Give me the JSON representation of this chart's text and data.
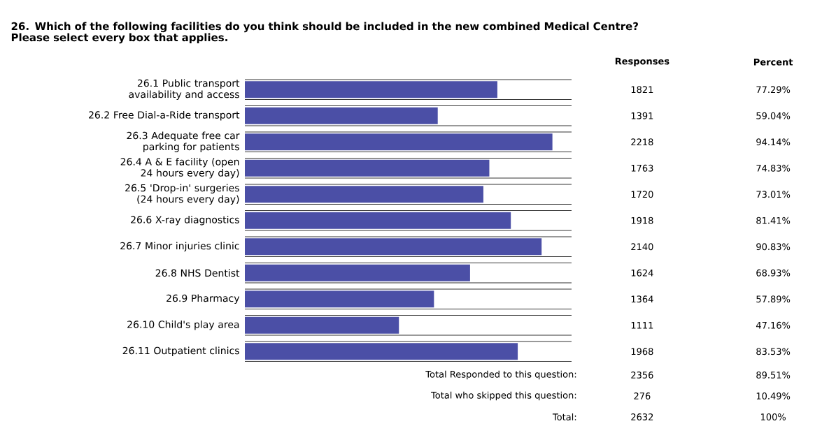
{
  "chart_data": {
    "type": "bar",
    "orientation": "horizontal",
    "title": "26. Which of the following facilities do you think should be included in the new combined Medical Centre? Please select every box that applies.",
    "categories": [
      "26.1 Public transport availability and access",
      "26.2 Free Dial-a-Ride transport",
      "26.3 Adequate free car parking for patients",
      "26.4 A & E facility (open 24 hours every day)",
      "26.5 'Drop-in' surgeries (24 hours every day)",
      "26.6 X-ray diagnostics",
      "26.7 Minor injuries clinic",
      "26.8 NHS Dentist",
      "26.9 Pharmacy",
      "26.10 Child's play area",
      "26.11 Outpatient clinics"
    ],
    "values": [
      77.29,
      59.04,
      94.14,
      74.83,
      73.01,
      81.41,
      90.83,
      68.93,
      57.89,
      47.16,
      83.53
    ],
    "value_labels": [
      "77.29%",
      "59.04%",
      "94.14%",
      "74.83%",
      "73.01%",
      "81.41%",
      "90.83%",
      "68.93%",
      "57.89%",
      "47.16%",
      "83.53%"
    ],
    "color": "#4b4fa6",
    "xlim": [
      0,
      100
    ],
    "annotations": [
      "Responses",
      "Percent",
      "1821",
      "1391",
      "2218",
      "1763",
      "1720",
      "1918",
      "2140",
      "1624",
      "1364",
      "1111",
      "1968",
      "Total Responded to this question:",
      "2356",
      "89.51%",
      "Total who skipped this question:",
      "276",
      "10.49%",
      "Total:",
      "2632",
      "100%"
    ]
  }
}
